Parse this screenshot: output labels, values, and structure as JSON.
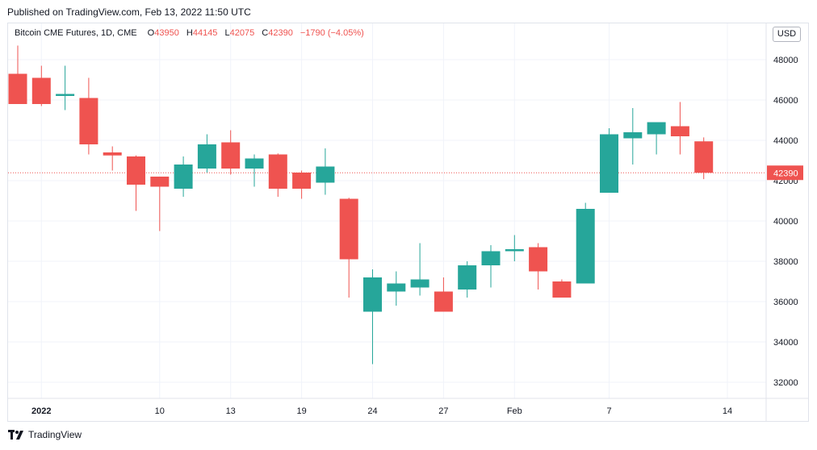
{
  "header": {
    "published": "Published on TradingView.com, Feb 13, 2022 11:50 UTC"
  },
  "legend": {
    "symbol": "Bitcoin CME Futures, 1D, CME",
    "open_label": "O",
    "open_value": "43950",
    "high_label": "H",
    "high_value": "44145",
    "low_label": "L",
    "low_value": "42075",
    "close_label": "C",
    "close_value": "42390",
    "change": "−1790 (−4.05%)"
  },
  "currency_button": "USD",
  "footer": {
    "brand": "TradingView"
  },
  "colors": {
    "up": "#26a69a",
    "down": "#ef5350",
    "grid": "#f0f3fa",
    "axis_text": "#131722"
  },
  "chart_data": {
    "type": "candlestick",
    "title": "Bitcoin CME Futures, 1D, CME",
    "ylim": [
      31200,
      49800
    ],
    "y_ticks": [
      32000,
      34000,
      36000,
      38000,
      40000,
      42000,
      44000,
      46000,
      48000
    ],
    "x_tick_labels": [
      {
        "label": "2022",
        "index": 1
      },
      {
        "label": "10",
        "index": 6
      },
      {
        "label": "13",
        "index": 9
      },
      {
        "label": "19",
        "index": 12
      },
      {
        "label": "24",
        "index": 15
      },
      {
        "label": "27",
        "index": 18
      },
      {
        "label": "Feb",
        "index": 21
      },
      {
        "label": "7",
        "index": 25
      },
      {
        "label": "14",
        "index": 30
      }
    ],
    "last_price": 42390,
    "last_price_label": "42390",
    "candles": [
      {
        "o": 47300,
        "h": 48700,
        "l": 45800,
        "c": 45800
      },
      {
        "o": 47100,
        "h": 47700,
        "l": 45700,
        "c": 45800
      },
      {
        "o": 46200,
        "h": 47700,
        "l": 45500,
        "c": 46300
      },
      {
        "o": 46100,
        "h": 47100,
        "l": 43300,
        "c": 43800
      },
      {
        "o": 43400,
        "h": 43700,
        "l": 42500,
        "c": 43250
      },
      {
        "o": 43200,
        "h": 43250,
        "l": 40500,
        "c": 41800
      },
      {
        "o": 42200,
        "h": 42200,
        "l": 39500,
        "c": 41700
      },
      {
        "o": 41600,
        "h": 43200,
        "l": 41200,
        "c": 42800
      },
      {
        "o": 42600,
        "h": 44300,
        "l": 42400,
        "c": 43800
      },
      {
        "o": 43900,
        "h": 44500,
        "l": 42300,
        "c": 42600
      },
      {
        "o": 42600,
        "h": 43300,
        "l": 41700,
        "c": 43100
      },
      {
        "o": 43300,
        "h": 43350,
        "l": 41200,
        "c": 41600
      },
      {
        "o": 42400,
        "h": 42500,
        "l": 41100,
        "c": 41600
      },
      {
        "o": 41900,
        "h": 43600,
        "l": 41300,
        "c": 42700
      },
      {
        "o": 41100,
        "h": 41150,
        "l": 36200,
        "c": 38100
      },
      {
        "o": 35500,
        "h": 37600,
        "l": 32900,
        "c": 37200
      },
      {
        "o": 36500,
        "h": 37500,
        "l": 35800,
        "c": 36900
      },
      {
        "o": 36700,
        "h": 38900,
        "l": 36300,
        "c": 37100
      },
      {
        "o": 36500,
        "h": 37200,
        "l": 35500,
        "c": 35500
      },
      {
        "o": 36600,
        "h": 38000,
        "l": 36200,
        "c": 37800
      },
      {
        "o": 37800,
        "h": 38800,
        "l": 36700,
        "c": 38500
      },
      {
        "o": 38500,
        "h": 39300,
        "l": 38000,
        "c": 38600
      },
      {
        "o": 38700,
        "h": 38900,
        "l": 36600,
        "c": 37500
      },
      {
        "o": 37000,
        "h": 37100,
        "l": 36200,
        "c": 36200
      },
      {
        "o": 36900,
        "h": 40900,
        "l": 36900,
        "c": 40600
      },
      {
        "o": 41400,
        "h": 44600,
        "l": 41400,
        "c": 44300
      },
      {
        "o": 44100,
        "h": 45600,
        "l": 42800,
        "c": 44400
      },
      {
        "o": 44300,
        "h": 44900,
        "l": 43300,
        "c": 44900
      },
      {
        "o": 44700,
        "h": 45900,
        "l": 43300,
        "c": 44200
      },
      {
        "o": 43950,
        "h": 44145,
        "l": 42075,
        "c": 42390
      }
    ]
  }
}
